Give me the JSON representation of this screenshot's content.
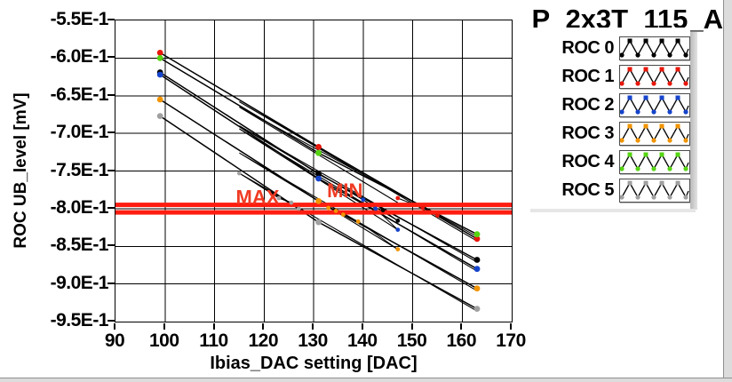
{
  "window": {
    "background": "#ffffff",
    "frame_color": "#dcdcdc",
    "frame_edge_color": "#8f8f8f"
  },
  "title": {
    "text": "P_2x3T_115_A"
  },
  "chart_data": {
    "type": "line",
    "title": "P_2x3T_115_A",
    "xlabel": "Ibias_DAC setting [DAC]",
    "ylabel": "ROC UB_level [mV]",
    "xlim": [
      90,
      170
    ],
    "ylim": [
      -0.95,
      -0.55
    ],
    "x_ticks": [
      90,
      100,
      110,
      120,
      130,
      140,
      150,
      160,
      170
    ],
    "y_tick_labels": [
      "-5.5E-1",
      "-6.0E-1",
      "-6.5E-1",
      "-7.0E-1",
      "-7.5E-1",
      "-8.0E-1",
      "-8.5E-1",
      "-9.0E-1",
      "-9.5E-1"
    ],
    "y_tick_values": [
      -0.55,
      -0.6,
      -0.65,
      -0.7,
      -0.75,
      -0.8,
      -0.85,
      -0.9,
      -0.95
    ],
    "grid": true,
    "line_color": "#000000",
    "ref_lines": [
      {
        "name": "max",
        "label": "MAX",
        "value": -0.795,
        "color": "#ff1d10",
        "label_color": "#ef3b23",
        "label_anchor": {
          "dac": 114.3,
          "value": -0.7935
        }
      },
      {
        "name": "min",
        "label": "MIN",
        "value": -0.805,
        "color": "#ff1d10",
        "label_color": "#ef3b23",
        "label_anchor": {
          "dac": 132.7,
          "value": -0.785
        }
      }
    ],
    "series": [
      {
        "name": "ROC 0",
        "color": "#000000",
        "scan": [
          [
            99,
            -0.619
          ],
          [
            131,
            -0.754
          ],
          [
            163,
            -0.868
          ]
        ],
        "retrace": [
          [
            163,
            -0.871
          ],
          [
            115,
            -0.69
          ],
          [
            147,
            -0.816
          ]
        ],
        "fine": [
          [
            144,
            -0.802
          ],
          [
            147,
            -0.816
          ]
        ]
      },
      {
        "name": "ROC 1",
        "color": "#e8170b",
        "scan": [
          [
            99,
            -0.593
          ],
          [
            131,
            -0.718
          ],
          [
            163,
            -0.84
          ]
        ],
        "retrace": [
          [
            163,
            -0.843
          ],
          [
            115,
            -0.658
          ],
          [
            155,
            -0.809
          ]
        ],
        "fine": [
          [
            147,
            -0.786
          ],
          [
            152,
            -0.799
          ],
          [
            155,
            -0.809
          ]
        ]
      },
      {
        "name": "ROC 2",
        "color": "#1544cc",
        "scan": [
          [
            99,
            -0.622
          ],
          [
            131,
            -0.76
          ],
          [
            163,
            -0.88
          ]
        ],
        "retrace": [
          [
            163,
            -0.883
          ],
          [
            115,
            -0.694
          ],
          [
            147,
            -0.828
          ]
        ],
        "fine": [
          [
            140,
            -0.788
          ],
          [
            142.5,
            -0.8
          ],
          [
            147,
            -0.828
          ]
        ]
      },
      {
        "name": "ROC 3",
        "color": "#f29400",
        "scan": [
          [
            99,
            -0.655
          ],
          [
            131,
            -0.79
          ],
          [
            163,
            -0.906
          ]
        ],
        "retrace": [
          [
            163,
            -0.909
          ],
          [
            115,
            -0.726
          ],
          [
            147,
            -0.854
          ]
        ],
        "fine": [
          [
            133,
            -0.799
          ],
          [
            134.5,
            -0.803
          ],
          [
            136,
            -0.808
          ],
          [
            139,
            -0.817
          ],
          [
            147,
            -0.854
          ]
        ]
      },
      {
        "name": "ROC 4",
        "color": "#55d411",
        "scan": [
          [
            99,
            -0.6
          ],
          [
            131,
            -0.726
          ],
          [
            163,
            -0.834
          ]
        ],
        "retrace": [
          [
            163,
            -0.837
          ],
          [
            115,
            -0.665
          ],
          [
            147,
            -0.792
          ]
        ],
        "fine": []
      },
      {
        "name": "ROC 5",
        "color": "#a0a0a0",
        "scan": [
          [
            99,
            -0.677
          ],
          [
            131,
            -0.818
          ],
          [
            163,
            -0.933
          ]
        ],
        "retrace": [
          [
            163,
            -0.936
          ],
          [
            115,
            -0.753
          ],
          [
            127,
            -0.8
          ]
        ],
        "fine": [
          [
            115,
            -0.753
          ],
          [
            123,
            -0.786
          ],
          [
            125.5,
            -0.792
          ],
          [
            127,
            -0.8
          ]
        ]
      }
    ]
  },
  "legend": {
    "items": [
      {
        "label": "ROC 0",
        "color": "#000000"
      },
      {
        "label": "ROC 1",
        "color": "#e8170b"
      },
      {
        "label": "ROC 2",
        "color": "#1544cc"
      },
      {
        "label": "ROC 3",
        "color": "#f29400"
      },
      {
        "label": "ROC 4",
        "color": "#55d411"
      },
      {
        "label": "ROC 5",
        "color": "#a0a0a0"
      }
    ]
  }
}
